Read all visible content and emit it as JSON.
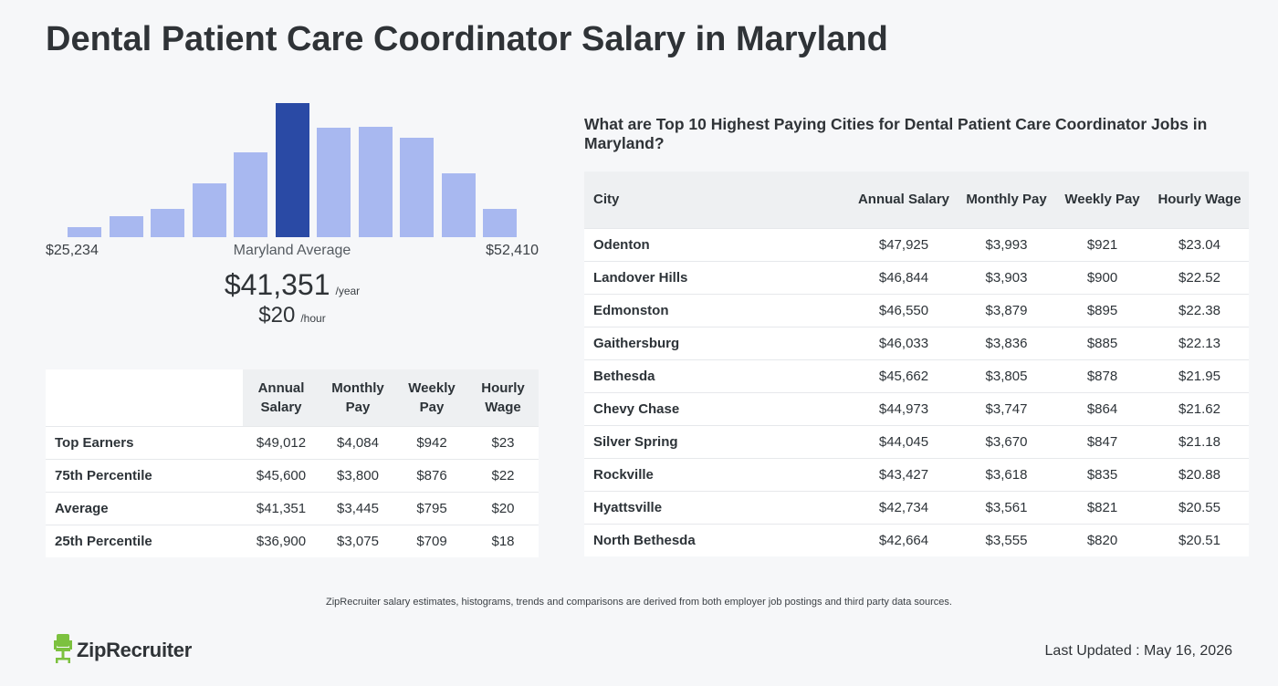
{
  "title": "Dental Patient Care Coordinator Salary in Maryland",
  "histogram": {
    "min_label": "$25,234",
    "max_label": "$52,410",
    "center_label": "Maryland Average",
    "highlight_index": 6,
    "bar_colors": {
      "default": "#a8b8f0",
      "highlight": "#2a4aa5"
    }
  },
  "chart_data": {
    "type": "bar",
    "title": "",
    "values": [
      11,
      23,
      31,
      58,
      92,
      145,
      118,
      119,
      108,
      69,
      31
    ],
    "highlight_index": 5,
    "ylim": [
      0,
      150
    ],
    "xmin_label": "$25,234",
    "xmax_label": "$52,410"
  },
  "average": {
    "annual": "$41,351",
    "annual_unit": "/year",
    "hourly": "$20",
    "hourly_unit": "/hour"
  },
  "percentiles": {
    "headers": [
      "Annual Salary",
      "Monthly Pay",
      "Weekly Pay",
      "Hourly Wage"
    ],
    "rows": [
      {
        "label": "Top Earners",
        "values": [
          "$49,012",
          "$4,084",
          "$942",
          "$23"
        ]
      },
      {
        "label": "75th Percentile",
        "values": [
          "$45,600",
          "$3,800",
          "$876",
          "$22"
        ]
      },
      {
        "label": "Average",
        "values": [
          "$41,351",
          "$3,445",
          "$795",
          "$20"
        ]
      },
      {
        "label": "25th Percentile",
        "values": [
          "$36,900",
          "$3,075",
          "$709",
          "$18"
        ]
      }
    ]
  },
  "cities": {
    "heading": "What are Top 10 Highest Paying Cities for Dental Patient Care Coordinator Jobs in Maryland?",
    "headers": [
      "City",
      "Annual Salary",
      "Monthly Pay",
      "Weekly Pay",
      "Hourly Wage"
    ],
    "rows": [
      {
        "city": "Odenton",
        "values": [
          "$47,925",
          "$3,993",
          "$921",
          "$23.04"
        ]
      },
      {
        "city": "Landover Hills",
        "values": [
          "$46,844",
          "$3,903",
          "$900",
          "$22.52"
        ]
      },
      {
        "city": "Edmonston",
        "values": [
          "$46,550",
          "$3,879",
          "$895",
          "$22.38"
        ]
      },
      {
        "city": "Gaithersburg",
        "values": [
          "$46,033",
          "$3,836",
          "$885",
          "$22.13"
        ]
      },
      {
        "city": "Bethesda",
        "values": [
          "$45,662",
          "$3,805",
          "$878",
          "$21.95"
        ]
      },
      {
        "city": "Chevy Chase",
        "values": [
          "$44,973",
          "$3,747",
          "$864",
          "$21.62"
        ]
      },
      {
        "city": "Silver Spring",
        "values": [
          "$44,045",
          "$3,670",
          "$847",
          "$21.18"
        ]
      },
      {
        "city": "Rockville",
        "values": [
          "$43,427",
          "$3,618",
          "$835",
          "$20.88"
        ]
      },
      {
        "city": "Hyattsville",
        "values": [
          "$42,734",
          "$3,561",
          "$821",
          "$20.55"
        ]
      },
      {
        "city": "North Bethesda",
        "values": [
          "$42,664",
          "$3,555",
          "$820",
          "$20.51"
        ]
      }
    ]
  },
  "footnote": "ZipRecruiter salary estimates, histograms, trends and comparisons are derived from both employer job postings and third party data sources.",
  "logo": {
    "text": "ZipRecruiter",
    "icon": "chair-icon",
    "icon_color": "#7cc13f"
  },
  "last_updated": "Last Updated : May 16, 2026"
}
